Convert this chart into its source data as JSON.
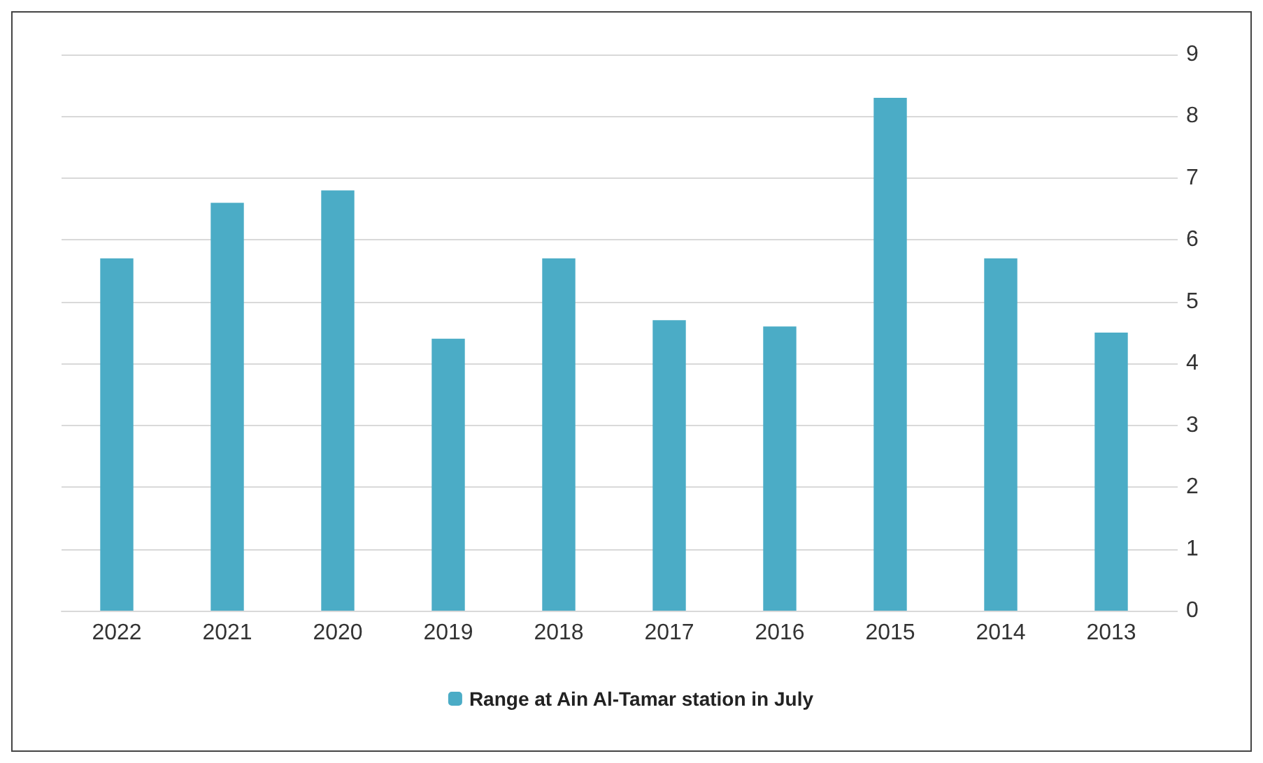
{
  "chart_data": {
    "type": "bar",
    "categories": [
      "2022",
      "2021",
      "2020",
      "2019",
      "2018",
      "2017",
      "2016",
      "2015",
      "2014",
      "2013"
    ],
    "series": [
      {
        "name": "Range at Ain Al-Tamar station in July",
        "color": "#4bacc6",
        "values": [
          5.7,
          6.6,
          6.8,
          4.4,
          5.7,
          4.7,
          4.6,
          8.3,
          5.7,
          4.5
        ]
      }
    ],
    "ylim": [
      0,
      9
    ],
    "yticks": [
      0,
      1,
      2,
      3,
      4,
      5,
      6,
      7,
      8,
      9
    ],
    "grid": "y",
    "legend": "bottom"
  }
}
